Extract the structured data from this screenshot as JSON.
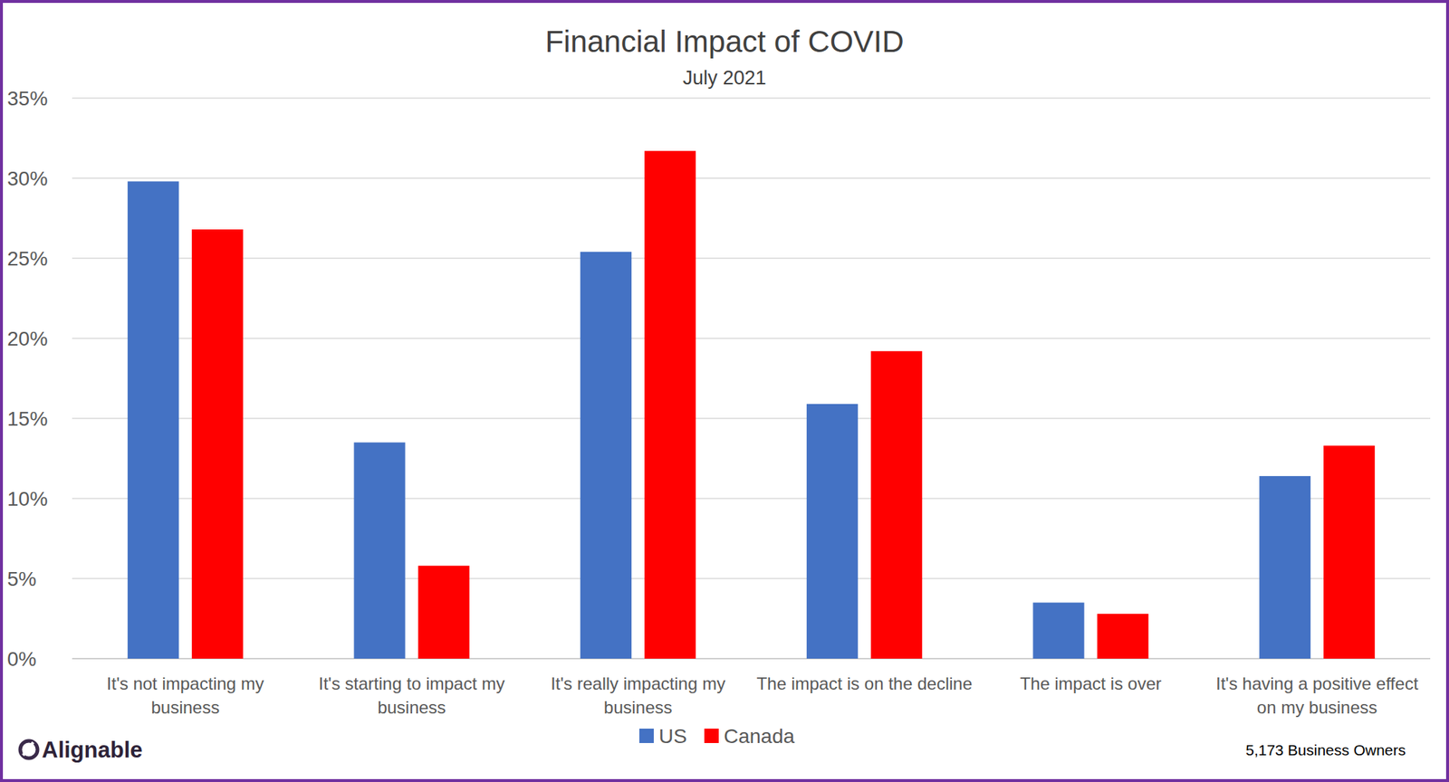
{
  "chart_data": {
    "type": "bar",
    "title": "Financial Impact of COVID",
    "subtitle": "July 2021",
    "categories": [
      "It's not impacting my business",
      "It's starting to impact my business",
      "It's really impacting my business",
      "The impact is on the decline",
      "The impact is over",
      "It's having a positive effect on my business"
    ],
    "series": [
      {
        "name": "US",
        "color": "#4472c4",
        "values": [
          29.8,
          13.5,
          25.4,
          15.9,
          3.5,
          11.4
        ]
      },
      {
        "name": "Canada",
        "color": "#ff0000",
        "values": [
          26.8,
          5.8,
          31.7,
          19.2,
          2.8,
          13.3
        ]
      }
    ],
    "ylim": [
      0,
      35
    ],
    "yticks": [
      {
        "value": 0,
        "label": "0%"
      },
      {
        "value": 5,
        "label": "5%"
      },
      {
        "value": 10,
        "label": "10%"
      },
      {
        "value": 15,
        "label": "15%"
      },
      {
        "value": 20,
        "label": "20%"
      },
      {
        "value": 25,
        "label": "25%"
      },
      {
        "value": 30,
        "label": "30%"
      },
      {
        "value": 35,
        "label": "35%"
      }
    ],
    "grid": true,
    "legend": "bottom",
    "annotations": [
      "Alignable",
      "5,173 Business Owners"
    ]
  }
}
